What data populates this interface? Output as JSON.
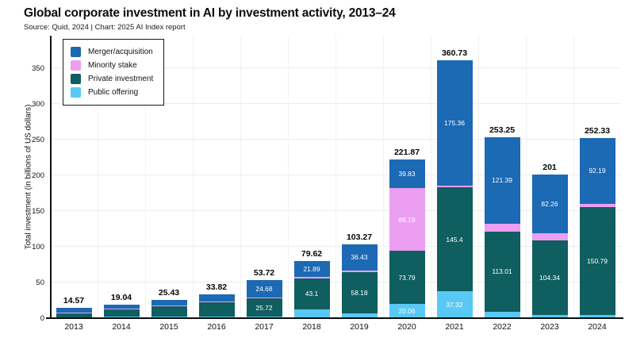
{
  "header": {
    "title": "Global corporate investment in AI by investment activity, 2013–24",
    "subtitle": "Source: Quid, 2024 | Chart: 2025 AI Index report"
  },
  "chart_data": {
    "type": "bar",
    "stacked": true,
    "title": "Global corporate investment in AI by investment activity, 2013–24",
    "xlabel": "",
    "ylabel": "Total investment (in billions of US dollars)",
    "categories": [
      "2013",
      "2014",
      "2015",
      "2016",
      "2017",
      "2018",
      "2019",
      "2020",
      "2021",
      "2022",
      "2023",
      "2024"
    ],
    "yticks": [
      0,
      50,
      100,
      150,
      200,
      250,
      300,
      350
    ],
    "ylim": [
      0,
      395
    ],
    "grid": true,
    "legend_position": "top-left",
    "series": [
      {
        "name": "Merger/acquisition",
        "color": "#1c69b4",
        "values": [
          6.3,
          5.5,
          7.5,
          10.0,
          24.68,
          21.89,
          36.43,
          39.83,
          175.36,
          121.39,
          82.26,
          92.19
        ],
        "labels": [
          "",
          "",
          "",
          "",
          "24.68",
          "21.89",
          "36.43",
          "39.83",
          "175.36",
          "121.39",
          "82.26",
          "92.19"
        ]
      },
      {
        "name": "Minority stake",
        "color": "#ec9ef2",
        "values": [
          1.2,
          1.0,
          1.2,
          1.6,
          1.6,
          2.1,
          2.2,
          88.19,
          2.65,
          10.41,
          10.0,
          5.0
        ],
        "labels": [
          "",
          "",
          "",
          "",
          "",
          "",
          "",
          "88.19",
          "",
          "",
          "",
          ""
        ]
      },
      {
        "name": "Private investment",
        "color": "#0f5e60",
        "values": [
          5.6,
          10.5,
          14.5,
          20.5,
          25.72,
          43.1,
          58.18,
          73.79,
          145.4,
          113.01,
          104.34,
          150.79
        ],
        "labels": [
          "",
          "",
          "",
          "",
          "25.72",
          "43.1",
          "58.18",
          "73.79",
          "145.4",
          "113.01",
          "104.34",
          "150.79"
        ]
      },
      {
        "name": "Public offering",
        "color": "#5ac8f5",
        "values": [
          1.47,
          2.04,
          2.23,
          1.72,
          1.72,
          12.53,
          6.46,
          20.06,
          37.32,
          8.44,
          4.4,
          4.35
        ],
        "labels": [
          "",
          "",
          "",
          "",
          "",
          "",
          "",
          "20.06",
          "37.32",
          "",
          "",
          ""
        ]
      }
    ],
    "totals": [
      14.57,
      19.04,
      25.43,
      33.82,
      53.72,
      79.62,
      103.27,
      221.87,
      360.73,
      253.25,
      201,
      252.33
    ],
    "total_labels": [
      "14.57",
      "19.04",
      "25.43",
      "33.82",
      "53.72",
      "79.62",
      "103.27",
      "221.87",
      "360.73",
      "253.25",
      "201",
      "252.33"
    ],
    "style": {
      "axis_color": "#111111",
      "grid_color": "#ececec",
      "inside_label_color": "#ffffff",
      "total_label_color": "#050505",
      "background": "#ffffff"
    }
  }
}
